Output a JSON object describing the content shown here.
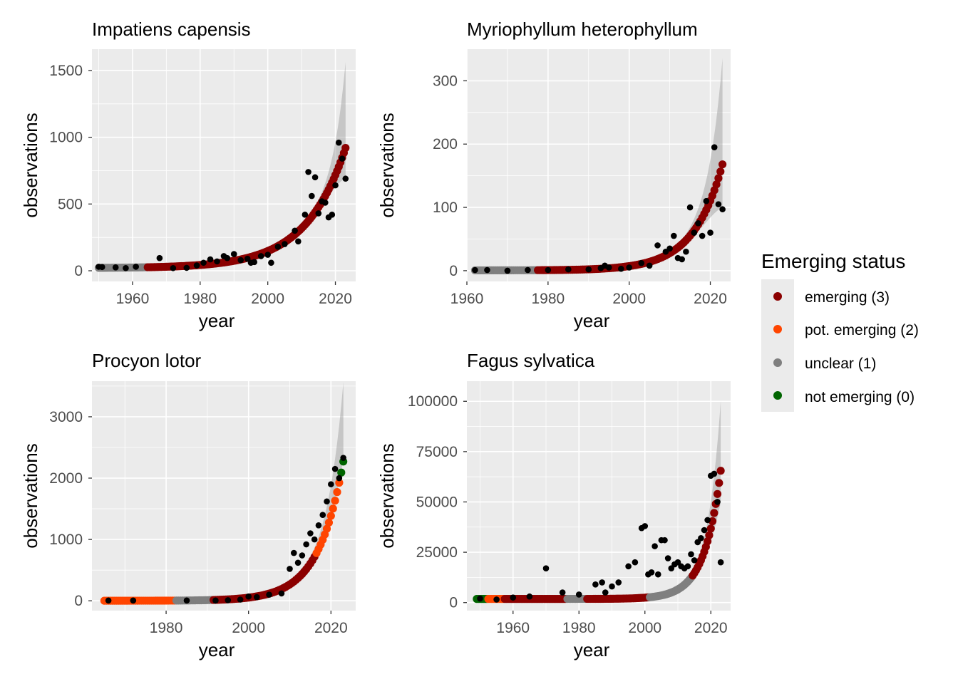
{
  "legend": {
    "title": "Emerging status",
    "items": [
      {
        "label": "emerging (3)",
        "color": "#8b0000"
      },
      {
        "label": "pot. emerging (2)",
        "color": "#ff4500"
      },
      {
        "label": "unclear (1)",
        "color": "#7f7f7f"
      },
      {
        "label": "not emerging (0)",
        "color": "#006400"
      }
    ]
  },
  "status_colors": {
    "3": "#8b0000",
    "2": "#ff4500",
    "1": "#7f7f7f",
    "0": "#006400"
  },
  "chart_data": [
    {
      "type": "scatter",
      "title": "Impatiens capensis",
      "xlabel": "year",
      "ylabel": "observations",
      "xlim": [
        1948,
        2026
      ],
      "ylim": [
        -80,
        1660
      ],
      "xticks": [
        1960,
        1980,
        2000,
        2020
      ],
      "yticks": [
        0,
        500,
        1000,
        1500
      ],
      "fit": {
        "x0": 1950,
        "x1": 2023,
        "ypre": 20,
        "ymax": 920,
        "k": 0.085
      },
      "band_end": {
        "upper": 1560,
        "lower": 690
      },
      "status_segments": [
        {
          "from": 1950,
          "to": 1964,
          "status": 1
        },
        {
          "from": 1964,
          "to": 2023,
          "status": 3
        }
      ],
      "observed": [
        [
          1950,
          30
        ],
        [
          1951,
          28
        ],
        [
          1955,
          25
        ],
        [
          1958,
          20
        ],
        [
          1961,
          30
        ],
        [
          1968,
          95
        ],
        [
          1972,
          20
        ],
        [
          1976,
          22
        ],
        [
          1979,
          40
        ],
        [
          1981,
          60
        ],
        [
          1983,
          85
        ],
        [
          1985,
          70
        ],
        [
          1987,
          110
        ],
        [
          1988,
          95
        ],
        [
          1990,
          125
        ],
        [
          1992,
          80
        ],
        [
          1994,
          90
        ],
        [
          1995,
          60
        ],
        [
          1996,
          65
        ],
        [
          1998,
          110
        ],
        [
          2000,
          120
        ],
        [
          2001,
          60
        ],
        [
          2003,
          180
        ],
        [
          2005,
          200
        ],
        [
          2008,
          300
        ],
        [
          2009,
          220
        ],
        [
          2011,
          420
        ],
        [
          2012,
          740
        ],
        [
          2013,
          560
        ],
        [
          2014,
          700
        ],
        [
          2015,
          430
        ],
        [
          2016,
          520
        ],
        [
          2017,
          510
        ],
        [
          2018,
          400
        ],
        [
          2019,
          420
        ],
        [
          2020,
          640
        ],
        [
          2021,
          960
        ],
        [
          2022,
          840
        ],
        [
          2023,
          690
        ]
      ]
    },
    {
      "type": "scatter",
      "title": "Myriophyllum heterophyllum",
      "xlabel": "year",
      "ylabel": "observations",
      "xlim": [
        1960,
        2025
      ],
      "ylim": [
        -17,
        350
      ],
      "xticks": [
        1960,
        1980,
        2000,
        2020
      ],
      "yticks": [
        0,
        100,
        200,
        300
      ],
      "fit": {
        "x0": 1962,
        "x1": 2023,
        "ypre": 0.5,
        "ymax": 168,
        "k": 0.14
      },
      "band_end": {
        "upper": 335,
        "lower": 100
      },
      "status_segments": [
        {
          "from": 1962,
          "to": 1977,
          "status": 1
        },
        {
          "from": 1977,
          "to": 2023,
          "status": 3
        }
      ],
      "observed": [
        [
          1962,
          1
        ],
        [
          1965,
          1
        ],
        [
          1970,
          0
        ],
        [
          1975,
          1
        ],
        [
          1980,
          1
        ],
        [
          1985,
          2
        ],
        [
          1990,
          2
        ],
        [
          1993,
          4
        ],
        [
          1994,
          8
        ],
        [
          1995,
          5
        ],
        [
          1998,
          3
        ],
        [
          2000,
          5
        ],
        [
          2003,
          12
        ],
        [
          2005,
          8
        ],
        [
          2007,
          40
        ],
        [
          2009,
          30
        ],
        [
          2010,
          35
        ],
        [
          2011,
          55
        ],
        [
          2012,
          20
        ],
        [
          2013,
          18
        ],
        [
          2014,
          30
        ],
        [
          2015,
          100
        ],
        [
          2016,
          60
        ],
        [
          2017,
          75
        ],
        [
          2018,
          55
        ],
        [
          2019,
          110
        ],
        [
          2020,
          60
        ],
        [
          2021,
          195
        ],
        [
          2022,
          105
        ],
        [
          2023,
          97
        ]
      ]
    },
    {
      "type": "scatter",
      "title": "Procyon lotor",
      "xlabel": "year",
      "ylabel": "observations",
      "xlim": [
        1962,
        2026
      ],
      "ylim": [
        -160,
        3580
      ],
      "xticks": [
        1980,
        2000,
        2020
      ],
      "yticks": [
        0,
        1000,
        2000,
        3000
      ],
      "fit": {
        "x0": 1965,
        "x1": 2023,
        "ypre": 1,
        "ymax": 2270,
        "k": 0.165
      },
      "band_end": {
        "upper": 3550,
        "lower": 2320
      },
      "status_segments": [
        {
          "from": 1965,
          "to": 1982,
          "status": 2
        },
        {
          "from": 1982,
          "to": 1991,
          "status": 1
        },
        {
          "from": 1991,
          "to": 2016,
          "status": 3
        },
        {
          "from": 2016,
          "to": 2022,
          "status": 2
        },
        {
          "from": 2022,
          "to": 2023,
          "status": 0
        }
      ],
      "observed": [
        [
          1966,
          5
        ],
        [
          1972,
          5
        ],
        [
          1985,
          5
        ],
        [
          1992,
          5
        ],
        [
          1995,
          10
        ],
        [
          1998,
          20
        ],
        [
          2000,
          70
        ],
        [
          2002,
          60
        ],
        [
          2005,
          100
        ],
        [
          2008,
          120
        ],
        [
          2010,
          520
        ],
        [
          2011,
          780
        ],
        [
          2012,
          620
        ],
        [
          2013,
          740
        ],
        [
          2014,
          920
        ],
        [
          2015,
          1100
        ],
        [
          2016,
          1000
        ],
        [
          2017,
          1230
        ],
        [
          2018,
          1400
        ],
        [
          2019,
          1620
        ],
        [
          2020,
          1900
        ],
        [
          2021,
          2150
        ],
        [
          2022,
          2000
        ],
        [
          2023,
          2330
        ]
      ]
    },
    {
      "type": "scatter",
      "title": "Fagus sylvatica",
      "xlabel": "year",
      "ylabel": "observations",
      "xlim": [
        1946,
        2026
      ],
      "ylim": [
        -4000,
        110000
      ],
      "xticks": [
        1960,
        1980,
        2000,
        2020
      ],
      "yticks": [
        0,
        25000,
        50000,
        75000,
        100000
      ],
      "fit": {
        "x0": 1949,
        "x1": 2023,
        "ypre": 1800,
        "ymax": 65500,
        "k": 0.2
      },
      "band_end": {
        "upper": 100000,
        "lower": 50000
      },
      "status_segments": [
        {
          "from": 1949,
          "to": 1952,
          "status": 0
        },
        {
          "from": 1952,
          "to": 1957,
          "status": 2
        },
        {
          "from": 1957,
          "to": 1976,
          "status": 3
        },
        {
          "from": 1976,
          "to": 1982,
          "status": 1
        },
        {
          "from": 1982,
          "to": 2001,
          "status": 3
        },
        {
          "from": 2001,
          "to": 2014,
          "status": 1
        },
        {
          "from": 2014,
          "to": 2023,
          "status": 3
        }
      ],
      "observed": [
        [
          1950,
          2000
        ],
        [
          1955,
          1500
        ],
        [
          1960,
          2500
        ],
        [
          1965,
          3000
        ],
        [
          1970,
          17000
        ],
        [
          1975,
          5000
        ],
        [
          1980,
          4000
        ],
        [
          1985,
          9000
        ],
        [
          1987,
          10000
        ],
        [
          1988,
          5000
        ],
        [
          1990,
          8000
        ],
        [
          1992,
          10000
        ],
        [
          1995,
          18000
        ],
        [
          1997,
          20000
        ],
        [
          1999,
          37000
        ],
        [
          2000,
          38000
        ],
        [
          2001,
          14000
        ],
        [
          2002,
          15000
        ],
        [
          2003,
          28000
        ],
        [
          2004,
          14000
        ],
        [
          2005,
          31000
        ],
        [
          2006,
          31000
        ],
        [
          2007,
          22000
        ],
        [
          2008,
          17000
        ],
        [
          2009,
          19000
        ],
        [
          2010,
          20000
        ],
        [
          2011,
          18000
        ],
        [
          2012,
          17000
        ],
        [
          2013,
          18000
        ],
        [
          2014,
          24000
        ],
        [
          2015,
          21000
        ],
        [
          2016,
          30000
        ],
        [
          2017,
          32000
        ],
        [
          2018,
          36000
        ],
        [
          2019,
          41000
        ],
        [
          2020,
          63000
        ],
        [
          2021,
          64000
        ],
        [
          2022,
          50000
        ],
        [
          2023,
          20000
        ]
      ]
    }
  ]
}
